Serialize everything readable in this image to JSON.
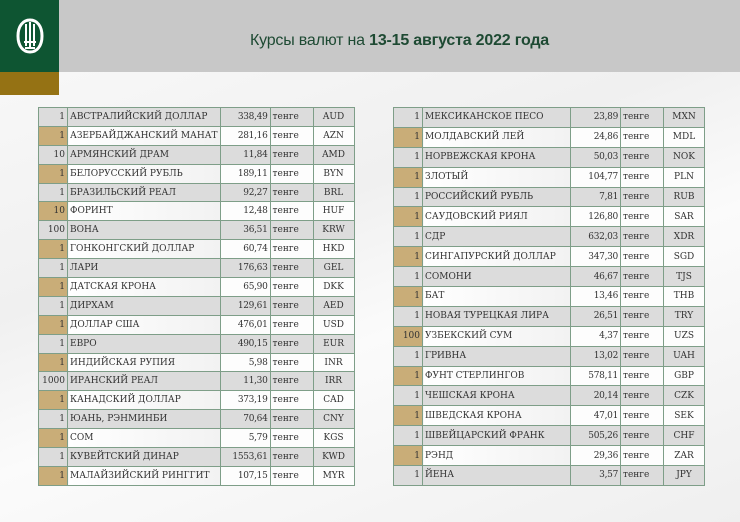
{
  "header": {
    "title_prefix": "Курсы валют на ",
    "title_bold": "13-15 августа 2022 года",
    "logo_icon": "national-bank-emblem-icon"
  },
  "colors": {
    "green": "#0e5532",
    "gold": "#957214",
    "band": "#c8c8c8",
    "tan": "#c9ad78"
  },
  "left_table": [
    [
      "1",
      "АВСТРАЛИЙСКИЙ ДОЛЛАР",
      "338,49",
      "тенге",
      "AUD"
    ],
    [
      "1",
      "АЗЕРБАЙДЖАНСКИЙ МАНАТ",
      "281,16",
      "тенге",
      "AZN"
    ],
    [
      "10",
      "АРМЯНСКИЙ  ДРАМ",
      "11,84",
      "тенге",
      "AMD"
    ],
    [
      "1",
      "БЕЛОРУССКИЙ РУБЛЬ",
      "189,11",
      "тенге",
      "BYN"
    ],
    [
      "1",
      "БРАЗИЛЬСКИЙ РЕАЛ",
      "92,27",
      "тенге",
      "BRL"
    ],
    [
      "10",
      "ФОРИНТ",
      "12,48",
      "тенге",
      "HUF"
    ],
    [
      "100",
      "ВОНА",
      "36,51",
      "тенге",
      "KRW"
    ],
    [
      "1",
      "ГОНКОНГСКИЙ ДОЛЛАР",
      "60,74",
      "тенге",
      "HKD"
    ],
    [
      "1",
      "ЛАРИ",
      "176,63",
      "тенге",
      "GEL"
    ],
    [
      "1",
      "ДАТСКАЯ КРОНА",
      "65,90",
      "тенге",
      "DKK"
    ],
    [
      "1",
      "ДИРХАМ",
      "129,61",
      "тенге",
      "AED"
    ],
    [
      "1",
      "ДОЛЛАР США",
      "476,01",
      "тенге",
      "USD"
    ],
    [
      "1",
      "ЕВРО",
      "490,15",
      "тенге",
      "EUR"
    ],
    [
      "1",
      "ИНДИЙСКАЯ РУПИЯ",
      "5,98",
      "тенге",
      "INR"
    ],
    [
      "1000",
      "ИРАНСКИЙ РЕАЛ",
      "11,30",
      "тенге",
      "IRR"
    ],
    [
      "1",
      "КАНАДСКИЙ ДОЛЛАР",
      "373,19",
      "тенге",
      "CAD"
    ],
    [
      "1",
      "ЮАНЬ, РЭНМИНБИ",
      "70,64",
      "тенге",
      "CNY"
    ],
    [
      "1",
      "СОМ",
      "5,79",
      "тенге",
      "KGS"
    ],
    [
      "1",
      "КУВЕЙТСКИЙ ДИНАР",
      "1553,61",
      "тенге",
      "KWD"
    ],
    [
      "1",
      "МАЛАЙЗИЙСКИЙ РИНГГИТ",
      "107,15",
      "тенге",
      "MYR"
    ]
  ],
  "right_table": [
    [
      "1",
      "МЕКСИКАНСКОЕ ПЕСО",
      "23,89",
      "тенге",
      "MXN"
    ],
    [
      "1",
      "МОЛДАВСКИЙ ЛЕЙ",
      "24,86",
      "тенге",
      "MDL"
    ],
    [
      "1",
      "НОРВЕЖСКАЯ КРОНА",
      "50,03",
      "тенге",
      "NOK"
    ],
    [
      "1",
      "ЗЛОТЫЙ",
      "104,77",
      "тенге",
      "PLN"
    ],
    [
      "1",
      "РОССИЙСКИЙ РУБЛЬ",
      "7,81",
      "тенге",
      "RUB"
    ],
    [
      "1",
      "САУДОВСКИЙ РИЯЛ",
      "126,80",
      "тенге",
      "SAR"
    ],
    [
      "1",
      "СДР",
      "632,03",
      "тенге",
      "XDR"
    ],
    [
      "1",
      "СИНГАПУРСКИЙ ДОЛЛАР",
      "347,30",
      "тенге",
      "SGD"
    ],
    [
      "1",
      "СОМОНИ",
      "46,67",
      "тенге",
      "TJS"
    ],
    [
      "1",
      "БАТ",
      "13,46",
      "тенге",
      "THB"
    ],
    [
      "1",
      "НОВАЯ ТУРЕЦКАЯ ЛИРА",
      "26,51",
      "тенге",
      "TRY"
    ],
    [
      "100",
      "УЗБЕКСКИЙ СУМ",
      "4,37",
      "тенге",
      "UZS"
    ],
    [
      "1",
      "ГРИВНА",
      "13,02",
      "тенге",
      "UAH"
    ],
    [
      "1",
      "ФУНТ СТЕРЛИНГОВ",
      "578,11",
      "тенге",
      "GBP"
    ],
    [
      "1",
      "ЧЕШСКАЯ КРОНА",
      "20,14",
      "тенге",
      "CZK"
    ],
    [
      "1",
      "ШВЕДСКАЯ КРОНА",
      "47,01",
      "тенге",
      "SEK"
    ],
    [
      "1",
      "ШВЕЙЦАРСКИЙ ФРАНК",
      "505,26",
      "тенге",
      "CHF"
    ],
    [
      "1",
      "РЭНД",
      "29,36",
      "тенге",
      "ZAR"
    ],
    [
      "1",
      "ЙЕНА",
      "3,57",
      "тенге",
      "JPY"
    ]
  ]
}
